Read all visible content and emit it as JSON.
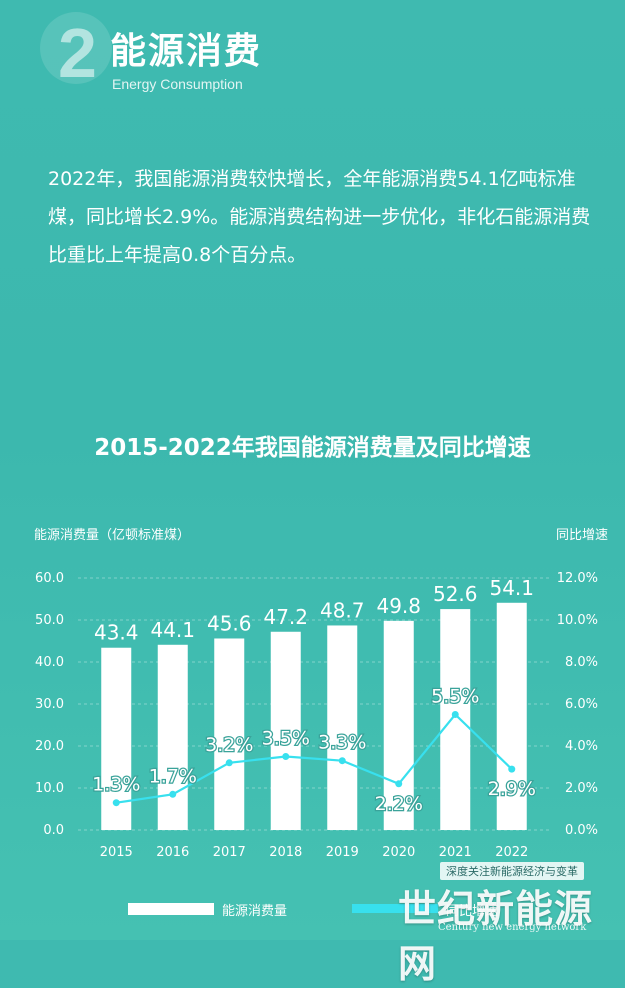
{
  "section": {
    "number": "2",
    "title": "能源消费",
    "subtitle": "Energy Consumption"
  },
  "intro_text": "2022年，我国能源消费较快增长，全年能源消费54.1亿吨标准煤，同比增长2.9%。能源消费结构进一步优化，非化石能源消费比重比上年提高0.8个百分点。",
  "chart_data": {
    "type": "bar",
    "title": "2015-2022年我国能源消费量及同比增速",
    "categories": [
      "2015",
      "2016",
      "2017",
      "2018",
      "2019",
      "2020",
      "2021",
      "2022"
    ],
    "ylabel_left": "能源消费量（亿顿标准煤）",
    "ylabel_right": "同比增速",
    "ylim_left": [
      0,
      60
    ],
    "yticks_left": [
      "0.0",
      "10.0",
      "20.0",
      "30.0",
      "40.0",
      "50.0",
      "60.0"
    ],
    "ylim_right": [
      0,
      12
    ],
    "yticks_right": [
      "0.0%",
      "2.0%",
      "4.0%",
      "6.0%",
      "8.0%",
      "10.0%",
      "12.0%"
    ],
    "grid": true,
    "legend_position": "bottom",
    "series": [
      {
        "name": "能源消费量",
        "type": "bar",
        "axis": "left",
        "values": [
          43.4,
          44.1,
          45.6,
          47.2,
          48.7,
          49.8,
          52.6,
          54.1
        ],
        "labels": [
          "43.4",
          "44.1",
          "45.6",
          "47.2",
          "48.7",
          "49.8",
          "52.6",
          "54.1"
        ],
        "color": "#ffffff"
      },
      {
        "name": "同比增速",
        "type": "line",
        "axis": "right",
        "values": [
          1.3,
          1.7,
          3.2,
          3.5,
          3.3,
          2.2,
          5.5,
          2.9
        ],
        "labels": [
          "1.3%",
          "1.7%",
          "3.2%",
          "3.5%",
          "3.3%",
          "2.2%",
          "5.5%",
          "2.9%"
        ],
        "color": "#38e0ee"
      }
    ]
  },
  "watermark": {
    "tag": "深度关注新能源经济与变革",
    "name": "世纪新能源网",
    "name_en": "Century new energy network"
  }
}
